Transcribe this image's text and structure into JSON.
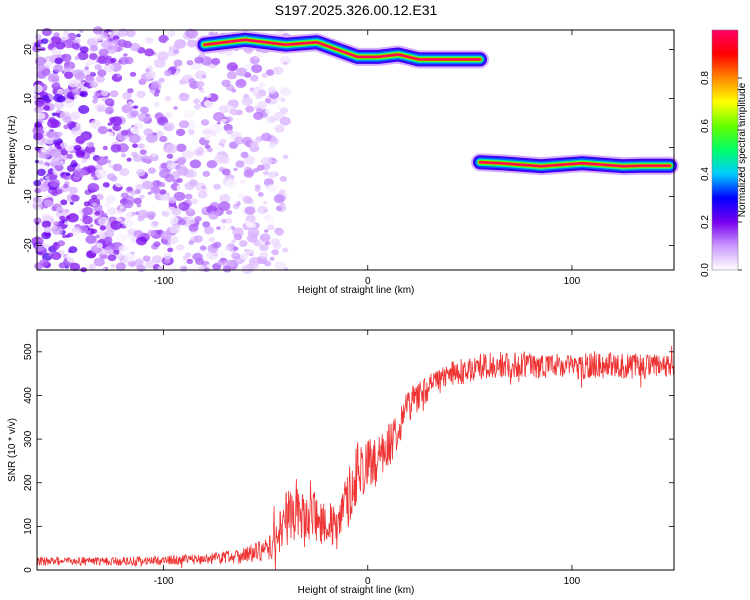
{
  "title": "S197.2025.326.00.12.E31",
  "chart_data": [
    {
      "type": "heatmap",
      "name": "spectrogram",
      "xlabel": "Height of straight line (km)",
      "ylabel": "Frequency (Hz)",
      "xlim": [
        -162,
        150
      ],
      "ylim": [
        -25,
        24
      ],
      "xticks": [
        -100,
        0,
        100
      ],
      "xtick_labels": [
        "-100",
        "0",
        "100"
      ],
      "yticks": [
        -20,
        -10,
        0,
        10,
        20
      ],
      "ytick_labels": [
        "-20",
        "-10",
        "0",
        "10",
        "20"
      ],
      "noise_region": {
        "x": [
          -162,
          -40
        ],
        "freq": [
          -25,
          24
        ],
        "amplitude_range": [
          0.0,
          0.25
        ]
      },
      "tracks": [
        {
          "name": "upper-track",
          "points": [
            [
              -80,
              21
            ],
            [
              -60,
              22
            ],
            [
              -40,
              21
            ],
            [
              -25,
              21.5
            ],
            [
              -15,
              20
            ],
            [
              -5,
              18.5
            ],
            [
              5,
              18.5
            ],
            [
              15,
              19
            ],
            [
              25,
              18
            ],
            [
              35,
              18
            ],
            [
              45,
              18
            ],
            [
              55,
              18
            ]
          ],
          "peak_amplitude": 1.0
        },
        {
          "name": "lower-track",
          "points": [
            [
              55,
              -3
            ],
            [
              65,
              -3.2
            ],
            [
              75,
              -3.5
            ],
            [
              85,
              -3.8
            ],
            [
              95,
              -3.5
            ],
            [
              105,
              -3.2
            ],
            [
              115,
              -3.5
            ],
            [
              125,
              -3.8
            ],
            [
              135,
              -3.7
            ],
            [
              148,
              -3.7
            ]
          ],
          "peak_amplitude": 1.0
        }
      ],
      "colorbar": {
        "label": "Normalized spectral amplitude",
        "range": [
          0,
          1
        ],
        "ticks": [
          0,
          0.2,
          0.4,
          0.6,
          0.8
        ],
        "tick_labels": [
          "0.0",
          "0.2",
          "0.4",
          "0.6",
          "0.8"
        ],
        "colormap": [
          "#ffffff",
          "#cc99ff",
          "#7700ee",
          "#0000ff",
          "#00ccff",
          "#00ff66",
          "#66ff00",
          "#ffff00",
          "#ff8800",
          "#ff0000",
          "#ff0066"
        ]
      }
    },
    {
      "type": "line",
      "name": "snr",
      "xlabel": "Height of straight line (km)",
      "ylabel": "SNR (10 * v/v)",
      "xlim": [
        -162,
        150
      ],
      "ylim": [
        0,
        550
      ],
      "xticks": [
        -100,
        0,
        100
      ],
      "xtick_labels": [
        "-100",
        "0",
        "100"
      ],
      "yticks": [
        0,
        100,
        200,
        300,
        400,
        500
      ],
      "ytick_labels": [
        "0",
        "100",
        "200",
        "300",
        "400",
        "500"
      ],
      "series": [
        {
          "name": "SNR",
          "color": "#ee3333",
          "x": [
            -162,
            -140,
            -120,
            -100,
            -80,
            -60,
            -50,
            -44,
            -40,
            -35,
            -30,
            -25,
            -20,
            -15,
            -10,
            -5,
            0,
            5,
            10,
            15,
            20,
            25,
            30,
            40,
            50,
            60,
            80,
            100,
            120,
            140,
            150
          ],
          "y": [
            20,
            20,
            20,
            22,
            25,
            35,
            45,
            70,
            120,
            140,
            110,
            120,
            110,
            90,
            160,
            230,
            240,
            250,
            280,
            330,
            380,
            400,
            420,
            445,
            460,
            470,
            470,
            465,
            470,
            465,
            465
          ],
          "noise": [
            10,
            10,
            10,
            10,
            12,
            20,
            25,
            45,
            65,
            70,
            65,
            60,
            55,
            50,
            70,
            70,
            60,
            55,
            55,
            45,
            40,
            35,
            30,
            30,
            30,
            30,
            30,
            30,
            30,
            30,
            30
          ]
        }
      ]
    }
  ]
}
